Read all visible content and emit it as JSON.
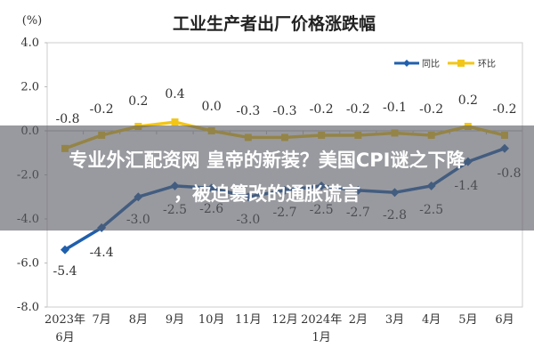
{
  "chart_data": {
    "type": "line",
    "title": "工业生产者出厂价格涨跌幅",
    "ylabel": "(%)",
    "xlabel": "",
    "ylim": [
      -8.0,
      4.0
    ],
    "yticks": [
      "4.0",
      "2.0",
      "0.0",
      "-2.0",
      "-4.0",
      "-6.0",
      "-8.0"
    ],
    "grid": false,
    "legend_position": "top-right",
    "categories": [
      "2023年6月",
      "7月",
      "8月",
      "9月",
      "10月",
      "11月",
      "12月",
      "2024年1月",
      "2月",
      "3月",
      "4月",
      "5月",
      "6月"
    ],
    "category_lines": [
      [
        "2023年",
        "6月"
      ],
      [
        "7月"
      ],
      [
        "8月"
      ],
      [
        "9月"
      ],
      [
        "10月"
      ],
      [
        "11月"
      ],
      [
        "12月"
      ],
      [
        "2024年",
        "1月"
      ],
      [
        "2月"
      ],
      [
        "3月"
      ],
      [
        "4月"
      ],
      [
        "5月"
      ],
      [
        "6月"
      ]
    ],
    "series": [
      {
        "name": "同比",
        "color": "#1f5fad",
        "values": [
          -5.4,
          -4.4,
          -3.0,
          -2.5,
          -2.6,
          -3.0,
          -2.7,
          -2.5,
          -2.7,
          -2.8,
          -2.5,
          -1.4,
          -0.8
        ],
        "labels": [
          "-5.4",
          "-4.4",
          "-3.0",
          "-2.5",
          "-2.6",
          "-3.0",
          "-2.7",
          "-2.5",
          "-2.7",
          "-2.8",
          "-2.5",
          "-1.4",
          "-0.8"
        ]
      },
      {
        "name": "环比",
        "color": "#f2c618",
        "values": [
          -0.8,
          -0.2,
          0.2,
          0.4,
          0.0,
          -0.3,
          -0.3,
          -0.2,
          -0.2,
          -0.1,
          -0.2,
          0.2,
          -0.2
        ],
        "labels": [
          "-0.8",
          "-0.2",
          "0.2",
          "0.4",
          "0.0",
          "-0.3",
          "-0.3",
          "-0.2",
          "-0.2",
          "-0.1",
          "-0.2",
          "0.2",
          "-0.2"
        ]
      }
    ]
  },
  "banner": {
    "line1": "专业外汇配资网 皇帝的新装？美国CPI谜之下降",
    "line2": "，被迫篡改的通胀谎言"
  }
}
